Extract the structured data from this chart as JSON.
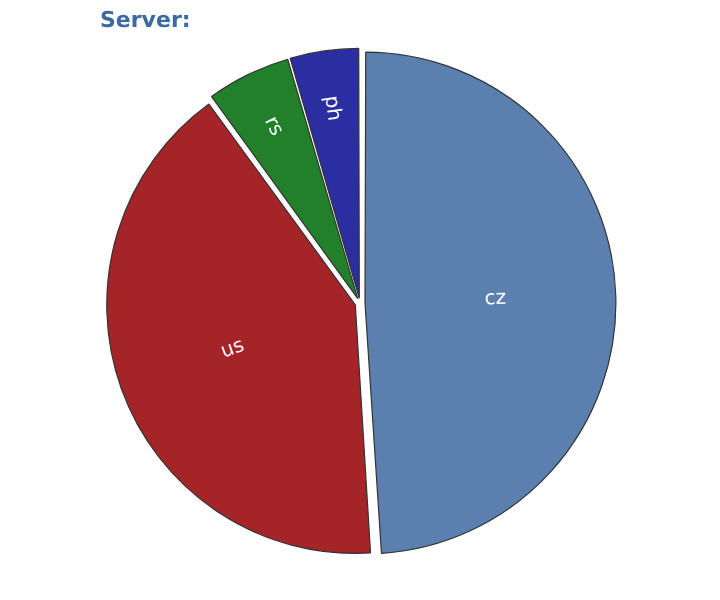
{
  "chart_data": {
    "type": "pie",
    "title": "Server:",
    "categories": [
      "cz",
      "us",
      "rs",
      "ph"
    ],
    "values": [
      49,
      41,
      5.5,
      4.5
    ],
    "colors": [
      "#5b80b0",
      "#a52428",
      "#22802a",
      "#2a2ea0"
    ],
    "legend": false
  }
}
